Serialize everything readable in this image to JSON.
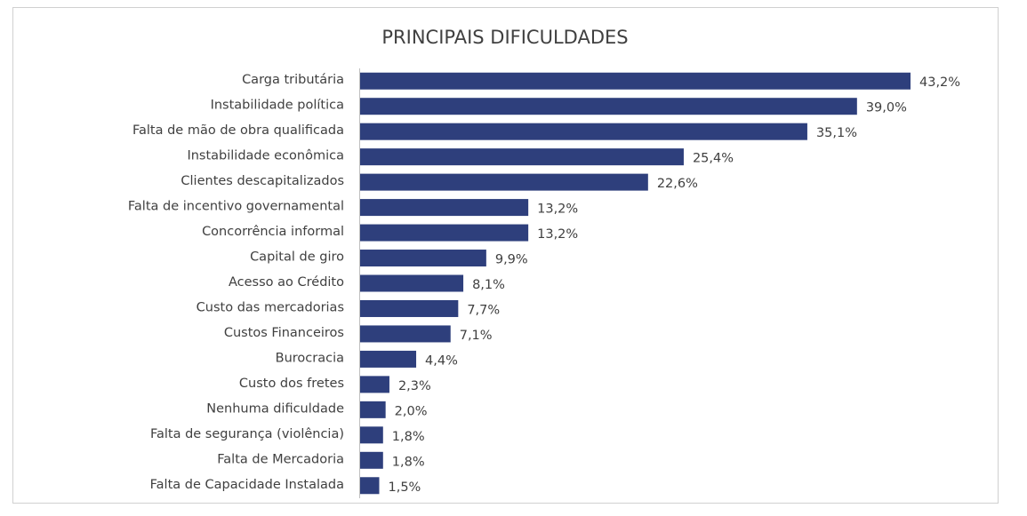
{
  "chart_data": {
    "type": "bar",
    "orientation": "horizontal",
    "title": "PRINCIPAIS DIFICULDADES",
    "categories": [
      "Carga tributária",
      "Instabilidade política",
      "Falta de mão de obra qualificada",
      "Instabilidade econômica",
      "Clientes descapitalizados",
      "Falta de incentivo governamental",
      "Concorrência informal",
      "Capital de giro",
      "Acesso ao Crédito",
      "Custo das mercadorias",
      "Custos Financeiros",
      "Burocracia",
      "Custo dos fretes",
      "Nenhuma dificuldade",
      "Falta de segurança (violência)",
      "Falta de Mercadoria",
      "Falta de Capacidade Instalada"
    ],
    "values": [
      43.2,
      39.0,
      35.1,
      25.4,
      22.6,
      13.2,
      13.2,
      9.9,
      8.1,
      7.7,
      7.1,
      4.4,
      2.3,
      2.0,
      1.8,
      1.8,
      1.5
    ],
    "value_labels": [
      "43,2%",
      "39,0%",
      "35,1%",
      "25,4%",
      "22,6%",
      "13,2%",
      "13,2%",
      "9,9%",
      "8,1%",
      "7,7%",
      "7,1%",
      "4,4%",
      "2,3%",
      "2,0%",
      "1,8%",
      "1,8%",
      "1,5%"
    ],
    "color": "#2e3f7c"
  }
}
